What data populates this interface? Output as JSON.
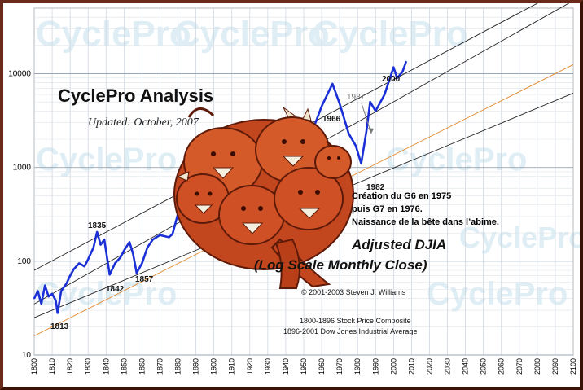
{
  "chart_data": {
    "type": "line",
    "title": "CyclePro Analysis",
    "subtitle": "Updated: October, 2007",
    "series_label_line1": "Adjusted DJIA",
    "series_label_line2": "(Log Scale Monthly Close)",
    "y_scale": "log",
    "ylim": [
      10,
      50000
    ],
    "xlim": [
      1800,
      2100
    ],
    "y_ticks": [
      10,
      100,
      1000,
      10000
    ],
    "y_tick_labels": [
      "10",
      "100",
      "1000",
      "10000"
    ],
    "x_ticks": [
      1800,
      1810,
      1820,
      1830,
      1840,
      1850,
      1860,
      1870,
      1880,
      1890,
      1900,
      1910,
      1920,
      1930,
      1940,
      1950,
      1960,
      1970,
      1980,
      1990,
      2000,
      2010,
      2020,
      2030,
      2040,
      2050,
      2060,
      2070,
      2080,
      2090,
      2100
    ],
    "x_tick_labels": [
      "1800",
      "1810",
      "1820",
      "1830",
      "1840",
      "1850",
      "1860",
      "1870",
      "1880",
      "1890",
      "1900",
      "1910",
      "1920",
      "1930",
      "1940",
      "1950",
      "1960",
      "1970",
      "1980",
      "1990",
      "2000",
      "2010",
      "2020",
      "2030",
      "2040",
      "2050",
      "2060",
      "2070",
      "2080",
      "2090",
      "2100"
    ],
    "grid": true,
    "series_color": "#1a2fd6",
    "series": [
      {
        "x": [
          1800,
          1802,
          1804,
          1806,
          1808,
          1810,
          1812,
          1813,
          1815,
          1818,
          1820,
          1822,
          1825,
          1828,
          1830,
          1833,
          1835,
          1837,
          1839,
          1842,
          1845,
          1848,
          1850,
          1853,
          1855,
          1857,
          1860,
          1863,
          1866,
          1870,
          1875,
          1877,
          1880,
          1885,
          1890,
          1895,
          1900,
          1905,
          1910,
          1915,
          1920,
          1925,
          1929,
          1932,
          1937,
          1942,
          1946,
          1950,
          1955,
          1960,
          1966,
          1970,
          1975,
          1979,
          1982,
          1985,
          1987,
          1990,
          1995,
          2000,
          2002,
          2005,
          2007
        ],
        "y": [
          40,
          48,
          35,
          55,
          42,
          45,
          38,
          28,
          48,
          58,
          70,
          82,
          95,
          88,
          105,
          140,
          205,
          150,
          170,
          72,
          95,
          110,
          130,
          160,
          120,
          75,
          95,
          140,
          170,
          190,
          180,
          195,
          320,
          350,
          420,
          430,
          500,
          760,
          700,
          780,
          600,
          1200,
          2700,
          250,
          1500,
          800,
          1300,
          1300,
          2500,
          4500,
          7800,
          4800,
          2300,
          1700,
          1100,
          2500,
          5000,
          4000,
          6000,
          11700,
          9000,
          10500,
          13500
        ]
      }
    ],
    "trend_lines": [
      {
        "name": "upper",
        "color": "#222222",
        "points": [
          [
            1800,
            80
          ],
          [
            2100,
            90000
          ]
        ]
      },
      {
        "name": "middle",
        "color": "#222222",
        "points": [
          [
            1800,
            35
          ],
          [
            2100,
            60000
          ]
        ]
      },
      {
        "name": "lower",
        "color": "#222222",
        "points": [
          [
            1800,
            25
          ],
          [
            2100,
            6200
          ]
        ]
      },
      {
        "name": "orange",
        "color": "#e08a2e",
        "points": [
          [
            1800,
            16
          ],
          [
            2100,
            12500
          ]
        ]
      }
    ],
    "annotations": [
      {
        "text": "1813",
        "x": 1813
      },
      {
        "text": "1835",
        "x": 1835
      },
      {
        "text": "1842",
        "x": 1842
      },
      {
        "text": "1857",
        "x": 1857
      },
      {
        "text": "1966",
        "x": 1966
      },
      {
        "text": "1982",
        "x": 1982
      },
      {
        "text": "2000",
        "x": 2000
      },
      {
        "text": "1987",
        "x": 1987
      }
    ],
    "notes": [
      "Création du G6 en 1975",
      "puis G7 en 1976.",
      "Naissance de la bête dans l’abime."
    ],
    "copyright": "© 2001-2003 Steven J. Williams",
    "sources": [
      "1800-1896 Stock Price Composite",
      "1896-2001 Dow Jones Industrial Average"
    ],
    "watermark": "CyclePro"
  }
}
